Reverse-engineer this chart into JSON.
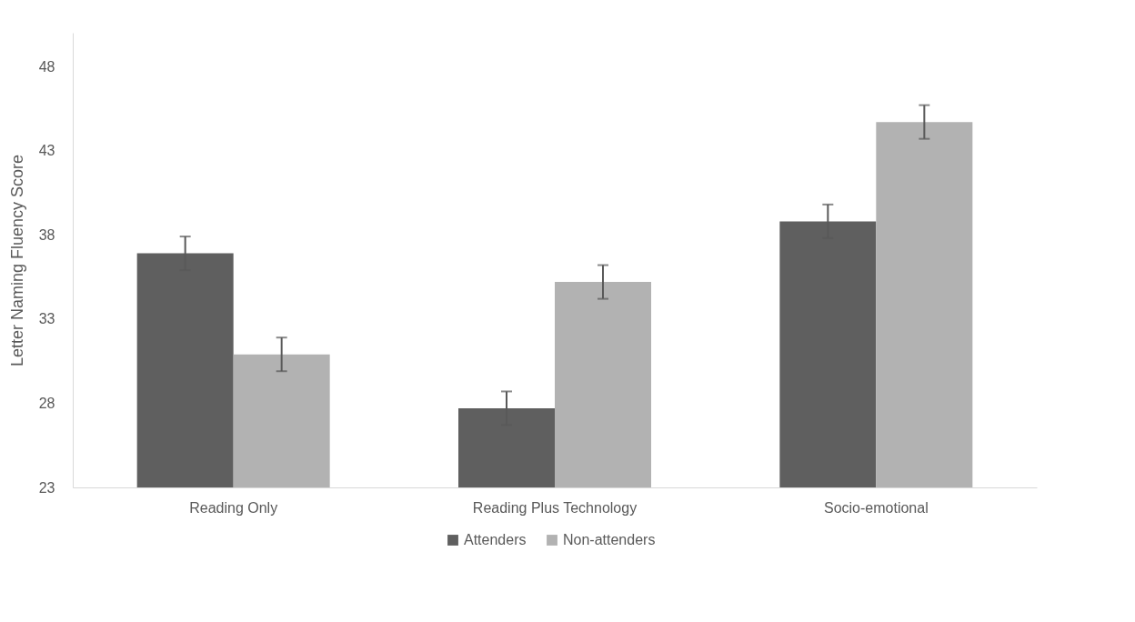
{
  "chart_data": {
    "type": "bar",
    "ylabel": "Letter Naming Fluency Score",
    "categories": [
      "Reading Only",
      "Reading Plus Technology",
      "Socio-emotional"
    ],
    "series": [
      {
        "name": "Attenders",
        "color": "#5f5f5f",
        "values": [
          36.9,
          27.7,
          38.8
        ],
        "errors": [
          1,
          1,
          1
        ]
      },
      {
        "name": "Non-attenders",
        "color": "#b2b2b2",
        "values": [
          30.9,
          35.2,
          44.7
        ],
        "errors": [
          1,
          1,
          1
        ]
      }
    ],
    "ylim": [
      23,
      50
    ],
    "yticks": [
      23,
      28,
      33,
      38,
      43,
      48
    ],
    "grid": false,
    "legend": "bottom"
  }
}
